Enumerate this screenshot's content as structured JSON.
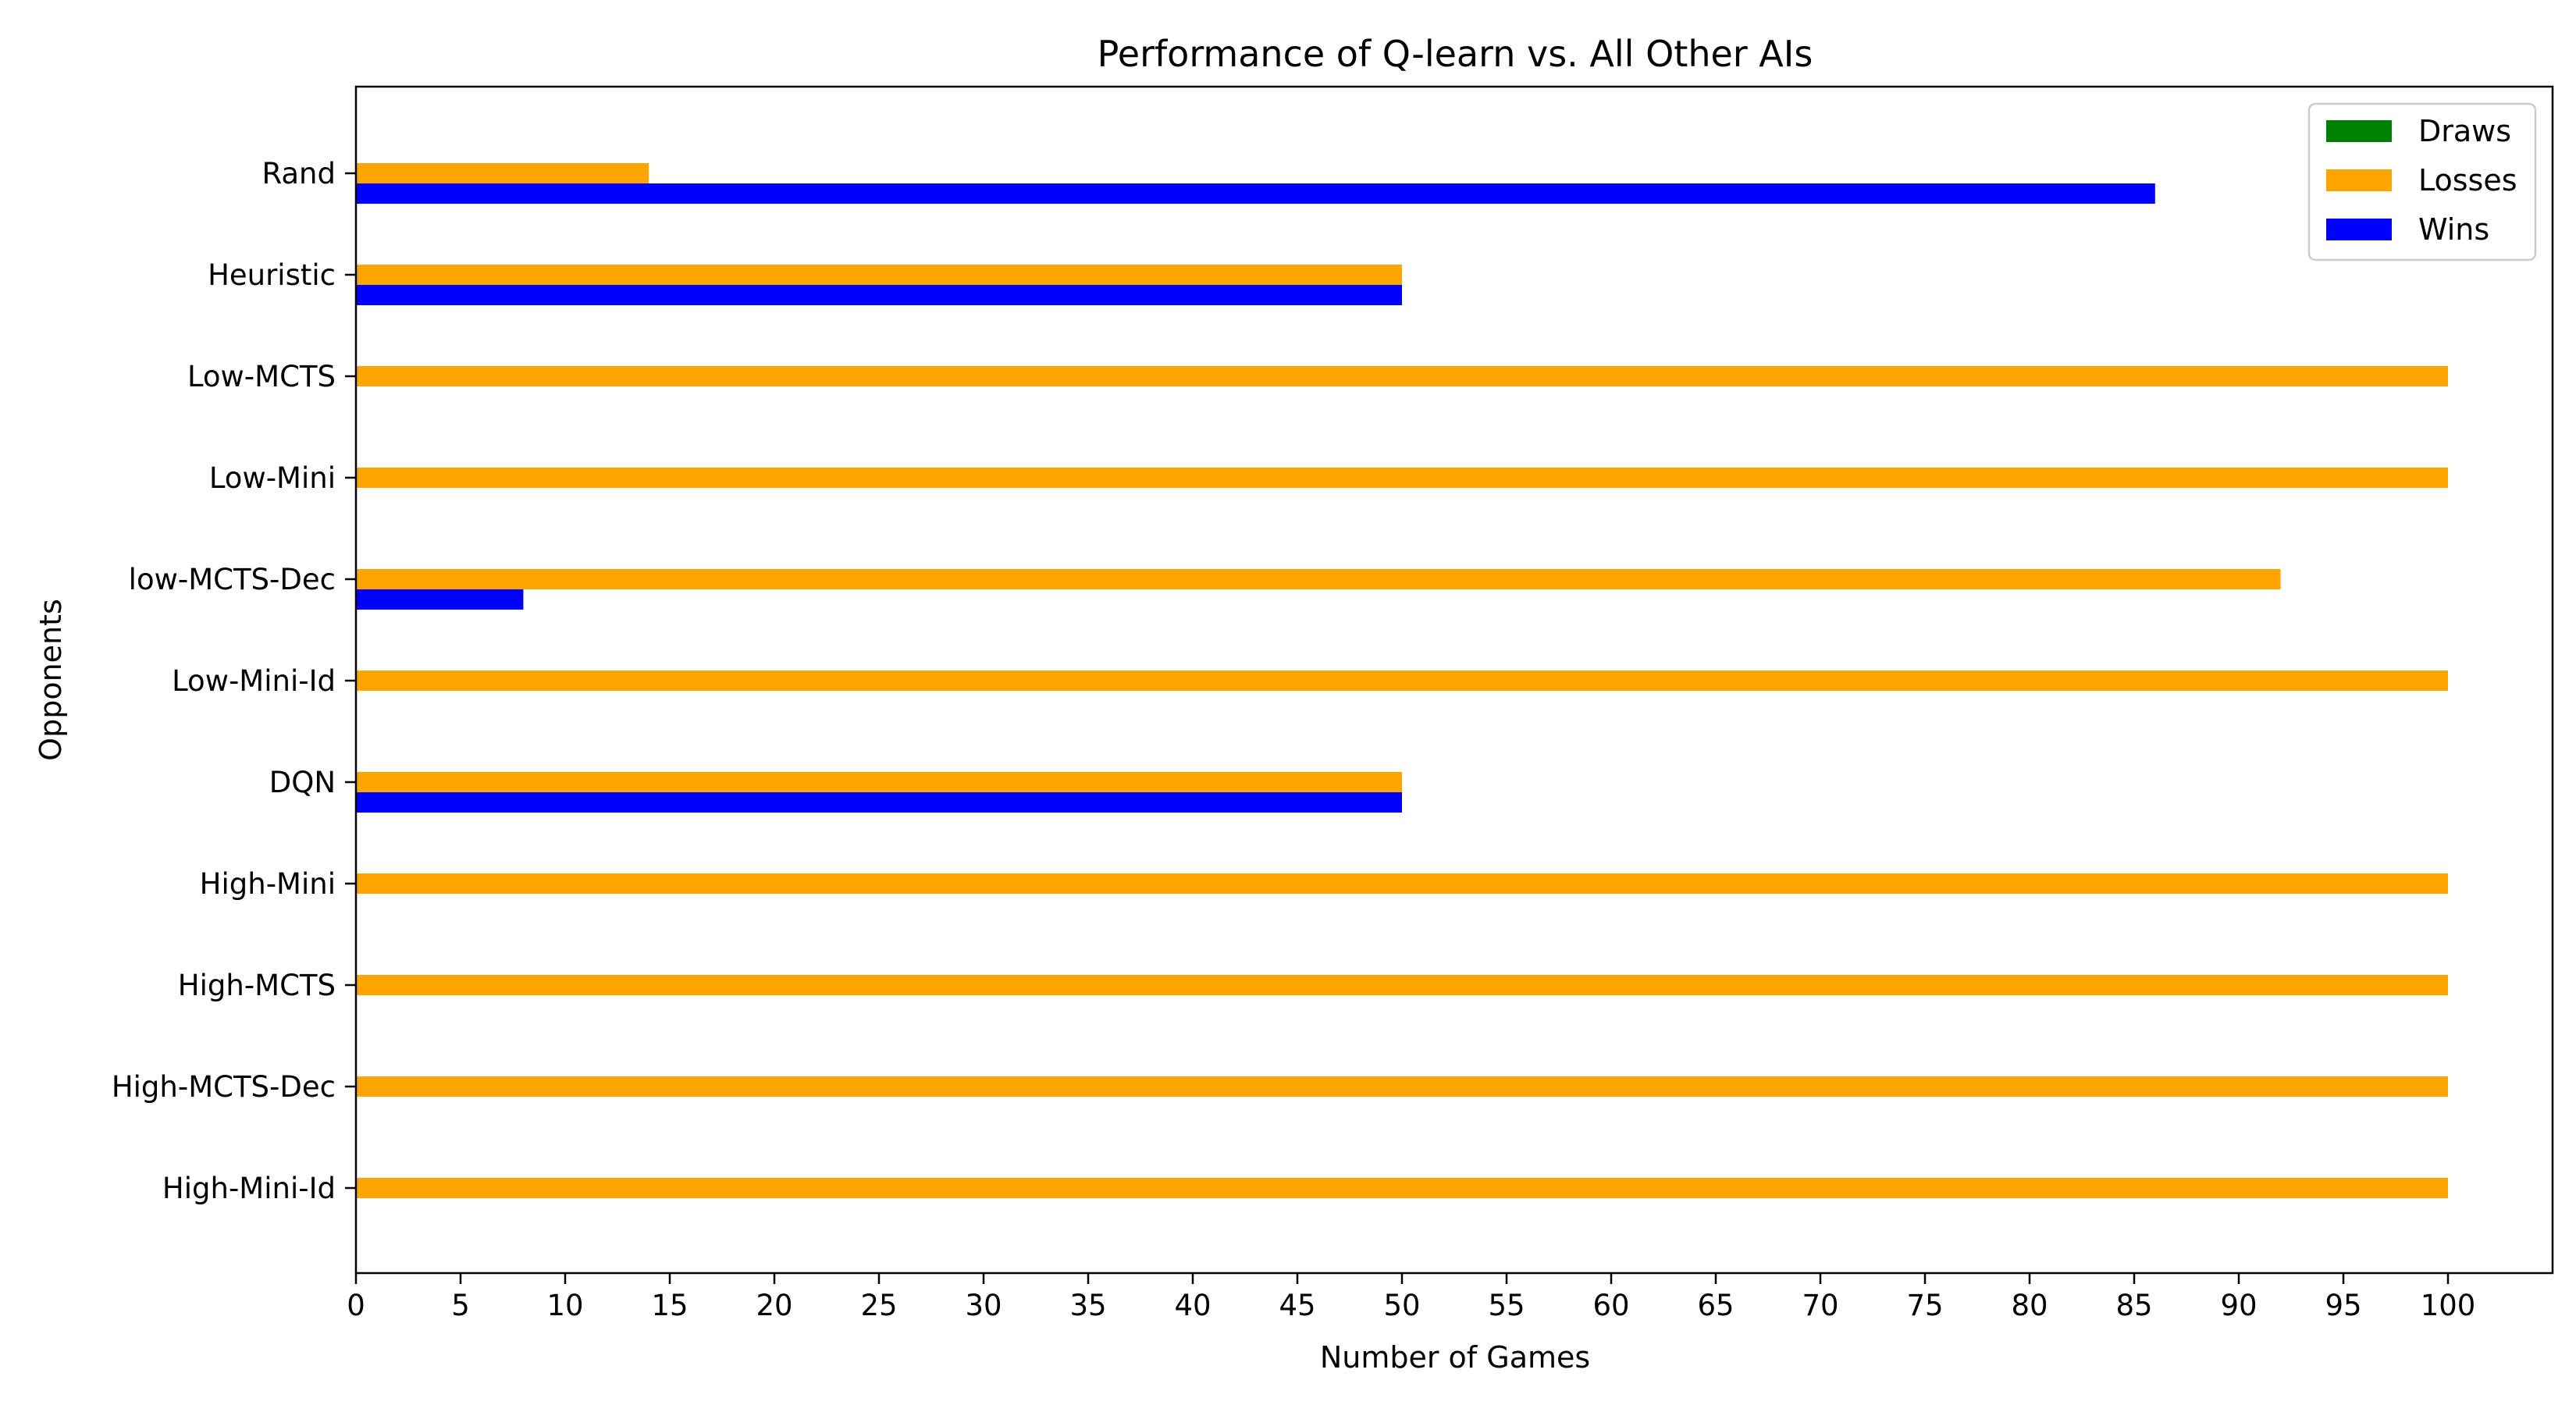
{
  "chart_data": {
    "type": "bar",
    "orientation": "horizontal",
    "title": "Performance of Q-learn vs. All Other AIs",
    "xlabel": "Number of Games",
    "ylabel": "Opponents",
    "xlim": [
      0,
      105
    ],
    "xticks": [
      0,
      5,
      10,
      15,
      20,
      25,
      30,
      35,
      40,
      45,
      50,
      55,
      60,
      65,
      70,
      75,
      80,
      85,
      90,
      95,
      100
    ],
    "grid": false,
    "legend_position": "top-right",
    "categories": [
      "Rand",
      "Heuristic",
      "Low-MCTS",
      "Low-Mini",
      "low-MCTS-Dec",
      "Low-Mini-Id",
      "DQN",
      "High-Mini",
      "High-MCTS",
      "High-MCTS-Dec",
      "High-Mini-Id"
    ],
    "series": [
      {
        "name": "Draws",
        "color": "#008000",
        "values": [
          0,
          0,
          0,
          0,
          0,
          0,
          0,
          0,
          0,
          0,
          0
        ]
      },
      {
        "name": "Losses",
        "color": "#ffa500",
        "values": [
          14,
          50,
          100,
          100,
          92,
          100,
          50,
          100,
          100,
          100,
          100
        ]
      },
      {
        "name": "Wins",
        "color": "#0000ff",
        "values": [
          86,
          50,
          0,
          0,
          8,
          0,
          50,
          0,
          0,
          0,
          0
        ]
      }
    ]
  }
}
